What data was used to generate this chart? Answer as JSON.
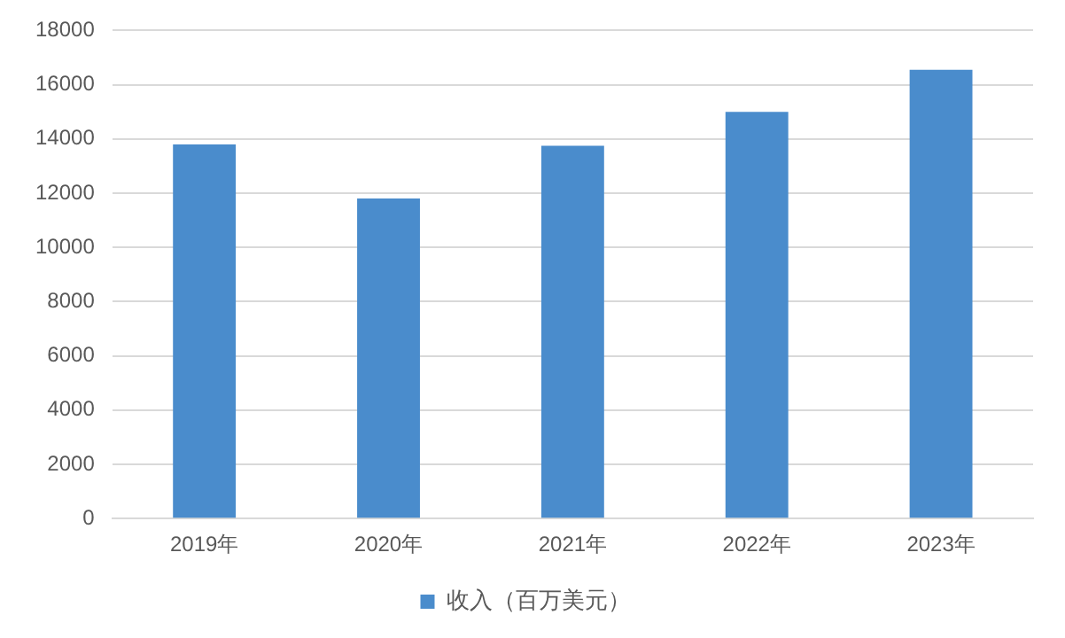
{
  "chart_data": {
    "type": "bar",
    "categories": [
      "2019年",
      "2020年",
      "2021年",
      "2022年",
      "2023年"
    ],
    "series": [
      {
        "name": "收入（百万美元）",
        "color": "#4a8ccc",
        "values": [
          13800,
          11800,
          13750,
          15000,
          16550
        ]
      }
    ],
    "ylim": [
      0,
      18000
    ],
    "yticks": [
      0,
      2000,
      4000,
      6000,
      8000,
      10000,
      12000,
      14000,
      16000,
      18000
    ],
    "grid": "y",
    "legend": "bottom"
  }
}
